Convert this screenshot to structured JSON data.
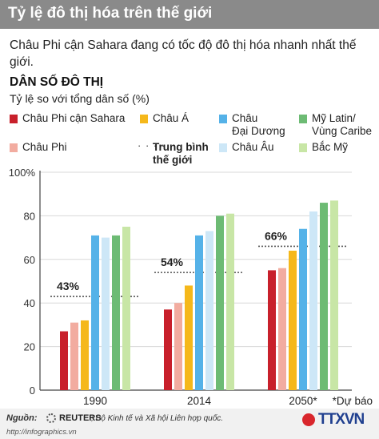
{
  "header": {
    "title": "Tỷ lệ đô thị hóa trên thế giới",
    "subtitle": "Châu Phi cận Sahara đang có tốc độ đô thị hóa nhanh nhất thế giới."
  },
  "section": {
    "heading": "DÂN SỐ ĐÔ THỊ",
    "subheading": "Tỷ lệ so với tổng dân số (%)"
  },
  "legend": {
    "items": [
      {
        "label": "Châu Phi cận Sahara",
        "color": "#c8202b"
      },
      {
        "label": "Châu Á",
        "color": "#f5b81b"
      },
      {
        "label": "Châu Đại Dương",
        "line1": "Châu",
        "line2": "Đại Dương",
        "color": "#55b2e8"
      },
      {
        "label": "Mỹ Latin/ Vùng Caribe",
        "line1": "Mỹ Latin/",
        "line2": "Vùng Caribe",
        "color": "#6dbb74"
      },
      {
        "label": "Châu Phi",
        "color": "#f2aca0"
      },
      {
        "label": "Trung bình thế giới",
        "line1": "Trung bình",
        "line2": "thế giới",
        "marker": "dotted-line"
      },
      {
        "label": "Châu Âu",
        "color": "#cde7f7"
      },
      {
        "label": "Bắc Mỹ",
        "color": "#c8e6a6"
      }
    ]
  },
  "chart_data": {
    "type": "bar",
    "categories": [
      "1990",
      "2014",
      "2050*"
    ],
    "series": [
      {
        "name": "Châu Phi cận Sahara",
        "values": [
          27,
          37,
          55
        ],
        "color": "#c8202b"
      },
      {
        "name": "Châu Phi",
        "values": [
          31,
          40,
          56
        ],
        "color": "#f2aca0"
      },
      {
        "name": "Châu Á",
        "values": [
          32,
          48,
          64
        ],
        "color": "#f5b81b"
      },
      {
        "name": "Châu Đại Dương",
        "values": [
          71,
          71,
          74
        ],
        "color": "#55b2e8"
      },
      {
        "name": "Châu Âu",
        "values": [
          70,
          73,
          82
        ],
        "color": "#cde7f7"
      },
      {
        "name": "Mỹ Latin/ Vùng Caribe",
        "values": [
          71,
          80,
          86
        ],
        "color": "#6dbb74"
      },
      {
        "name": "Bắc Mỹ",
        "values": [
          75,
          81,
          87
        ],
        "color": "#c8e6a6"
      }
    ],
    "world_average": {
      "name": "Trung bình thế giới",
      "values": [
        43,
        54,
        66
      ],
      "labels": [
        "43%",
        "54%",
        "66%"
      ]
    },
    "yticks": [
      "0",
      "20",
      "40",
      "60",
      "80",
      "100%"
    ],
    "ytick_values": [
      0,
      20,
      40,
      60,
      80,
      100
    ],
    "ylim": [
      0,
      100
    ],
    "grid": true,
    "note": "*Dự báo"
  },
  "footer": {
    "source_label": "Nguồn:",
    "reuters": "REUTERS",
    "source_text": "; Bộ Kinh tế và Xã hội Liên hợp quốc.",
    "site": "http://infographics.vn",
    "agency": "TTXVN"
  },
  "colors": {
    "title_bg": "#8a8a8a",
    "grid": "#d8d8d8",
    "axis": "#444444",
    "average_line": "#555555"
  }
}
